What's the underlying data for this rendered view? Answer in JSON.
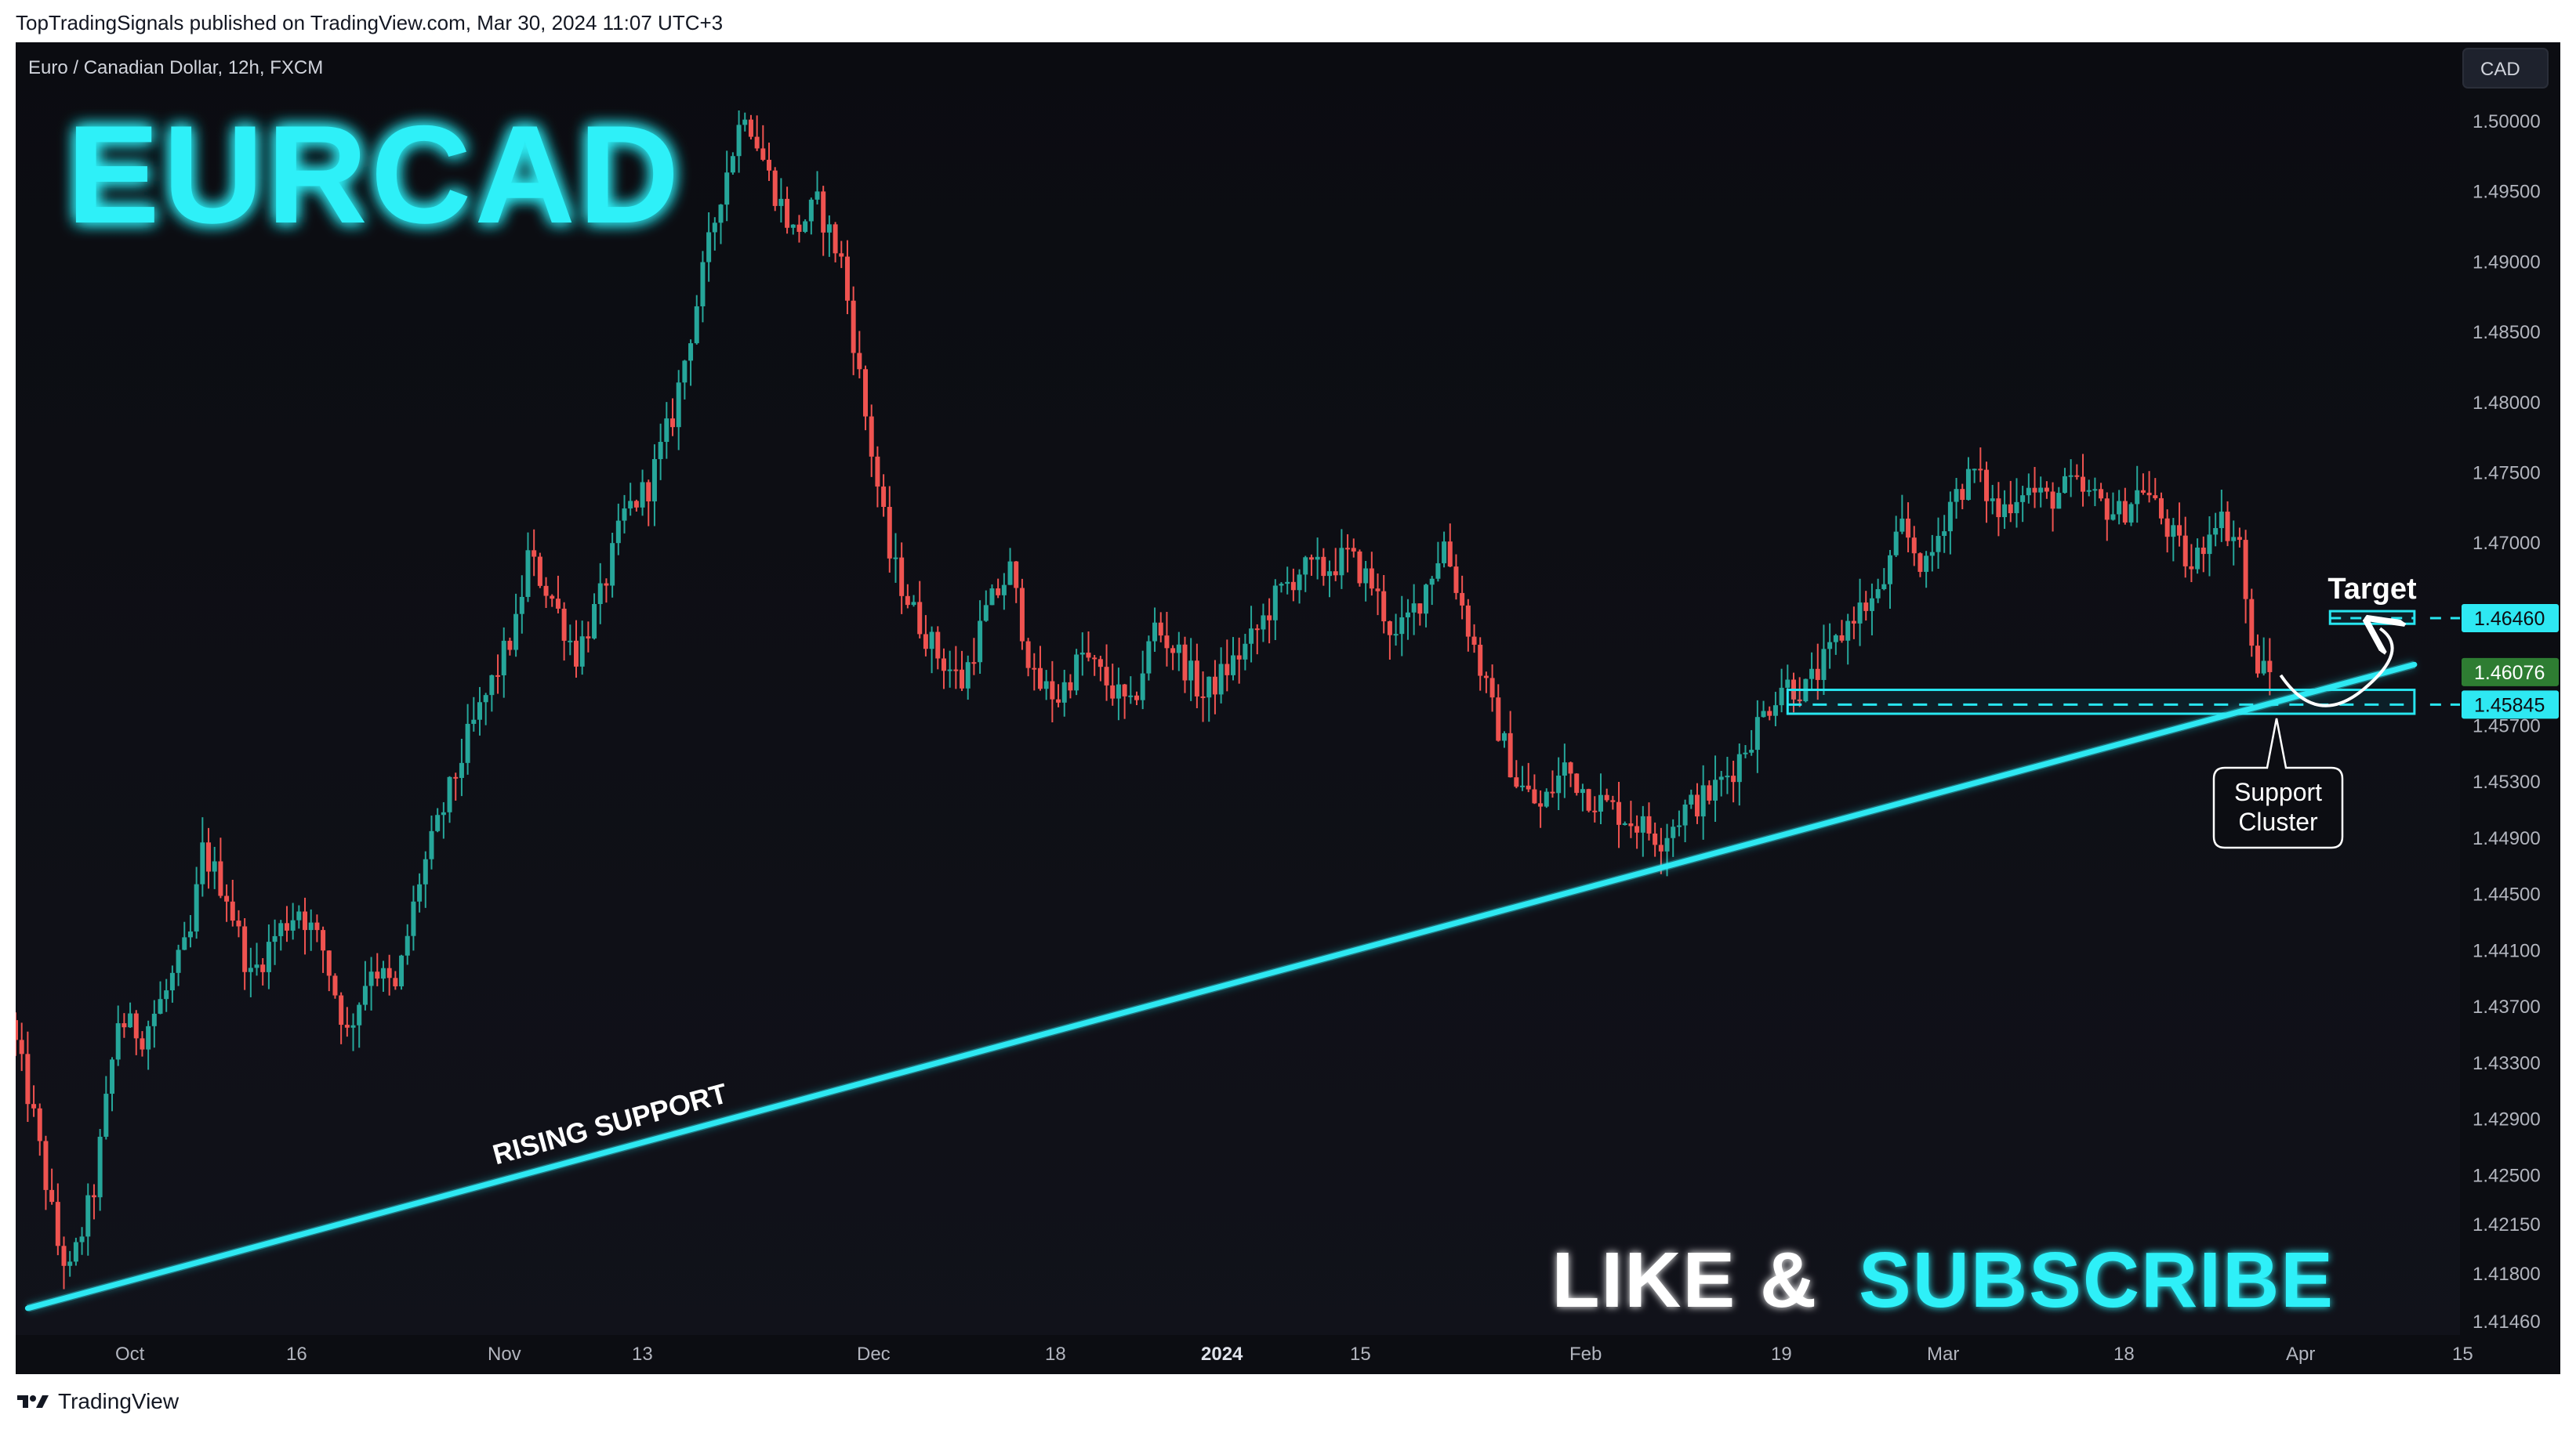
{
  "header": {
    "published": "TopTradingSignals published on TradingView.com, Mar 30, 2024 11:07 UTC+3"
  },
  "footer": {
    "logo_text": "TradingView"
  },
  "chart_data": {
    "type": "candlestick",
    "symbol_line": "Euro / Canadian Dollar, 12h, FXCM",
    "currency_badge": "CAD",
    "title": "EURCAD",
    "cta": {
      "part1": "LIKE &",
      "part2": "SUBSCRIBE"
    },
    "annotations": {
      "trendline_label": "RISING SUPPORT",
      "target_label": "Target",
      "support_label_line1": "Support",
      "support_label_line2": "Cluster"
    },
    "ylim": [
      1.4125,
      1.504
    ],
    "y_ticks": [
      "1.50000",
      "1.49500",
      "1.49000",
      "1.48500",
      "1.48000",
      "1.47500",
      "1.47000",
      "1.46500",
      "1.46100",
      "1.45700",
      "1.45300",
      "1.44900",
      "1.44500",
      "1.44100",
      "1.43700",
      "1.43300",
      "1.42900",
      "1.42500",
      "1.42150",
      "1.41800",
      "1.41460"
    ],
    "x_ticks": [
      {
        "label": "Oct",
        "bold": false
      },
      {
        "label": "16",
        "bold": false
      },
      {
        "label": "Nov",
        "bold": false
      },
      {
        "label": "13",
        "bold": false
      },
      {
        "label": "Dec",
        "bold": false
      },
      {
        "label": "18",
        "bold": false
      },
      {
        "label": "2024",
        "bold": true
      },
      {
        "label": "15",
        "bold": false
      },
      {
        "label": "Feb",
        "bold": false
      },
      {
        "label": "19",
        "bold": false
      },
      {
        "label": "Mar",
        "bold": false
      },
      {
        "label": "18",
        "bold": false
      },
      {
        "label": "Apr",
        "bold": false
      },
      {
        "label": "15",
        "bold": false
      }
    ],
    "price_labels": [
      {
        "value": "1.46460",
        "price": 1.4646,
        "kind": "target"
      },
      {
        "value": "1.46076",
        "price": 1.46076,
        "kind": "last"
      },
      {
        "value": "1.45845",
        "price": 1.45845,
        "kind": "support"
      }
    ],
    "trendline": {
      "from": {
        "date": "2023-09-27",
        "price": 1.4155
      },
      "to": {
        "date": "2024-04-12",
        "price": 1.4613
      }
    },
    "support_zone": {
      "from": "2024-02-20",
      "to": "2024-04-12",
      "top": 1.4595,
      "bottom": 1.4578,
      "line": 1.45845
    },
    "target_zone": {
      "from": "2024-04-05",
      "to": "2024-04-12",
      "top": 1.4651,
      "bottom": 1.4642,
      "line": 1.4646
    },
    "series_path": {
      "name": "",
      "points": [
        [
          "2023-09-26",
          1.436
        ],
        [
          "2023-09-28",
          1.429
        ],
        [
          "2023-09-30",
          1.42
        ],
        [
          "2023-10-01",
          1.418
        ],
        [
          "2023-10-03",
          1.424
        ],
        [
          "2023-10-05",
          1.436
        ],
        [
          "2023-10-07",
          1.435
        ],
        [
          "2023-10-09",
          1.438
        ],
        [
          "2023-10-11",
          1.442
        ],
        [
          "2023-10-12",
          1.448
        ],
        [
          "2023-10-14",
          1.445
        ],
        [
          "2023-10-16",
          1.439
        ],
        [
          "2023-10-18",
          1.442
        ],
        [
          "2023-10-20",
          1.444
        ],
        [
          "2023-10-22",
          1.441
        ],
        [
          "2023-10-24",
          1.435
        ],
        [
          "2023-10-26",
          1.44
        ],
        [
          "2023-10-28",
          1.438
        ],
        [
          "2023-10-30",
          1.446
        ],
        [
          "2023-11-01",
          1.451
        ],
        [
          "2023-11-03",
          1.456
        ],
        [
          "2023-11-05",
          1.46
        ],
        [
          "2023-11-07",
          1.464
        ],
        [
          "2023-11-08",
          1.469
        ],
        [
          "2023-11-10",
          1.466
        ],
        [
          "2023-11-12",
          1.462
        ],
        [
          "2023-11-14",
          1.466
        ],
        [
          "2023-11-16",
          1.472
        ],
        [
          "2023-11-18",
          1.474
        ],
        [
          "2023-11-20",
          1.479
        ],
        [
          "2023-11-22",
          1.487
        ],
        [
          "2023-11-24",
          1.495
        ],
        [
          "2023-11-26",
          1.501
        ],
        [
          "2023-11-28",
          1.496
        ],
        [
          "2023-11-30",
          1.492
        ],
        [
          "2023-12-02",
          1.494
        ],
        [
          "2023-12-04",
          1.49
        ],
        [
          "2023-12-06",
          1.479
        ],
        [
          "2023-12-08",
          1.469
        ],
        [
          "2023-12-10",
          1.465
        ],
        [
          "2023-12-12",
          1.462
        ],
        [
          "2023-12-14",
          1.46
        ],
        [
          "2023-12-16",
          1.465
        ],
        [
          "2023-12-18",
          1.468
        ],
        [
          "2023-12-20",
          1.46
        ],
        [
          "2023-12-22",
          1.459
        ],
        [
          "2023-12-24",
          1.462
        ],
        [
          "2023-12-26",
          1.46
        ],
        [
          "2023-12-28",
          1.458
        ],
        [
          "2023-12-30",
          1.464
        ],
        [
          "2024-01-01",
          1.462
        ],
        [
          "2024-01-03",
          1.459
        ],
        [
          "2024-01-05",
          1.461
        ],
        [
          "2024-01-07",
          1.463
        ],
        [
          "2024-01-09",
          1.466
        ],
        [
          "2024-01-11",
          1.468
        ],
        [
          "2024-01-13",
          1.468
        ],
        [
          "2024-01-15",
          1.469
        ],
        [
          "2024-01-17",
          1.467
        ],
        [
          "2024-01-19",
          1.463
        ],
        [
          "2024-01-21",
          1.466
        ],
        [
          "2024-01-23",
          1.47
        ],
        [
          "2024-01-25",
          1.464
        ],
        [
          "2024-01-27",
          1.458
        ],
        [
          "2024-01-29",
          1.453
        ],
        [
          "2024-01-31",
          1.451
        ],
        [
          "2024-02-02",
          1.454
        ],
        [
          "2024-02-04",
          1.452
        ],
        [
          "2024-02-06",
          1.451
        ],
        [
          "2024-02-08",
          1.45
        ],
        [
          "2024-02-10",
          1.449
        ],
        [
          "2024-02-12",
          1.451
        ],
        [
          "2024-02-14",
          1.452
        ],
        [
          "2024-02-16",
          1.454
        ],
        [
          "2024-02-18",
          1.457
        ],
        [
          "2024-02-20",
          1.46
        ],
        [
          "2024-02-22",
          1.4595
        ],
        [
          "2024-02-24",
          1.462
        ],
        [
          "2024-02-26",
          1.465
        ],
        [
          "2024-02-28",
          1.466
        ],
        [
          "2024-03-01",
          1.471
        ],
        [
          "2024-03-03",
          1.468
        ],
        [
          "2024-03-05",
          1.473
        ],
        [
          "2024-03-07",
          1.475
        ],
        [
          "2024-03-09",
          1.472
        ],
        [
          "2024-03-11",
          1.474
        ],
        [
          "2024-03-13",
          1.473
        ],
        [
          "2024-03-15",
          1.474
        ],
        [
          "2024-03-17",
          1.473
        ],
        [
          "2024-03-19",
          1.472
        ],
        [
          "2024-03-21",
          1.474
        ],
        [
          "2024-03-23",
          1.471
        ],
        [
          "2024-03-25",
          1.468
        ],
        [
          "2024-03-27",
          1.472
        ],
        [
          "2024-03-29",
          1.47
        ],
        [
          "2024-03-30",
          1.462
        ],
        [
          "2024-03-31",
          1.46076
        ]
      ]
    }
  }
}
